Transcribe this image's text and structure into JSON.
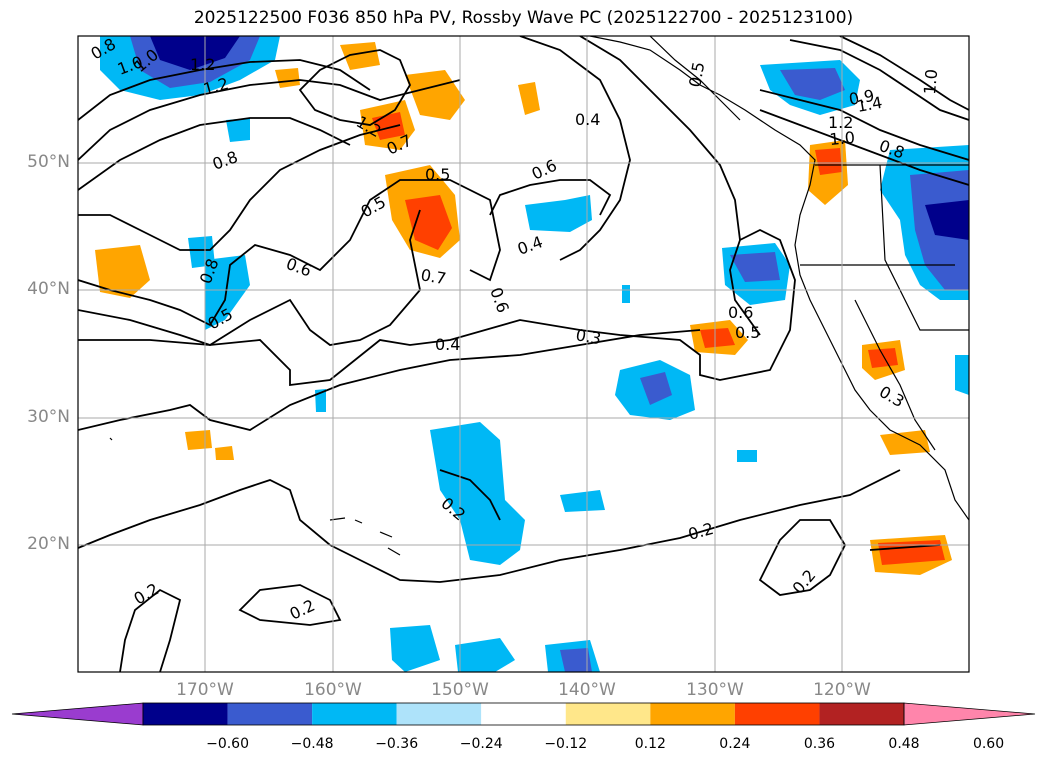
{
  "title": "2025122500 F036 850 hPa PV, Rossby Wave PC (2025122700 - 2025123100)",
  "lat_labels": [
    "50°N",
    "40°N",
    "30°N",
    "20°N"
  ],
  "lon_labels": [
    "170°W",
    "160°W",
    "150°W",
    "140°W",
    "130°W",
    "120°W"
  ],
  "colorbar": {
    "colors": [
      "#9a3ccf",
      "#00008b",
      "#3a5bcf",
      "#00b8f5",
      "#aee3fa",
      "#ffffff",
      "#ffe78a",
      "#ffa500",
      "#ff4000",
      "#b22222",
      "#ff85ab"
    ],
    "tick_labels": [
      "−0.60",
      "−0.48",
      "−0.36",
      "−0.24",
      "−0.12",
      "0.12",
      "0.24",
      "0.36",
      "0.48",
      "0.60"
    ]
  },
  "contour_labels": [
    "0.8",
    "1.0",
    "1.2",
    "1.2",
    "0.8",
    "1.0",
    "0.6",
    "0.8",
    "0.5",
    "1.2",
    "0.7",
    "0.5",
    "0.5",
    "0.7",
    "0.4",
    "0.6",
    "0.6",
    "0.4",
    "0.3",
    "0.4",
    "0.6",
    "0.5",
    "0.5",
    "0.9",
    "1.4",
    "1.2",
    "1.0",
    "0.8",
    "1.0",
    "0.3",
    "0.2",
    "0.2",
    "0.2",
    "0.2",
    "0.2"
  ]
}
